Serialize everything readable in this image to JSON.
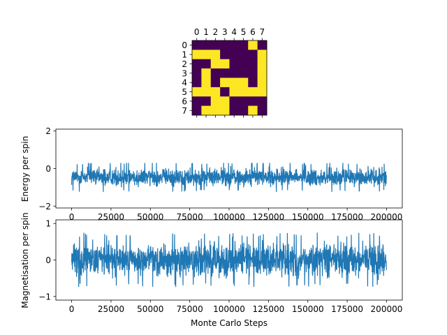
{
  "chart_data": [
    {
      "type": "heatmap",
      "x_ticks": [
        "0",
        "1",
        "2",
        "3",
        "4",
        "5",
        "6",
        "7"
      ],
      "y_ticks": [
        "0",
        "1",
        "2",
        "3",
        "4",
        "5",
        "6",
        "7"
      ],
      "grid": false,
      "colormap": {
        "low": "#440154",
        "high": "#fde725"
      },
      "values": [
        [
          0,
          0,
          0,
          0,
          0,
          0,
          1,
          0
        ],
        [
          1,
          1,
          1,
          0,
          0,
          0,
          0,
          1
        ],
        [
          0,
          0,
          1,
          1,
          0,
          0,
          0,
          1
        ],
        [
          0,
          1,
          0,
          0,
          0,
          0,
          0,
          1
        ],
        [
          0,
          1,
          0,
          1,
          1,
          1,
          0,
          1
        ],
        [
          1,
          1,
          1,
          0,
          1,
          1,
          1,
          1
        ],
        [
          0,
          0,
          1,
          1,
          0,
          0,
          0,
          0
        ],
        [
          0,
          1,
          1,
          1,
          0,
          0,
          1,
          0
        ]
      ]
    },
    {
      "type": "line",
      "ylabel": "Energy per spin",
      "xlabel": "",
      "xlim": [
        -10000,
        210000
      ],
      "ylim": [
        -2.1,
        2.1
      ],
      "x_ticks": [
        0,
        25000,
        50000,
        75000,
        100000,
        125000,
        150000,
        175000,
        200000
      ],
      "y_ticks": [
        -2,
        0,
        2
      ],
      "color": "#1f77b4",
      "grid": false,
      "series": [
        {
          "x_range": [
            0,
            200000
          ],
          "mean": -0.45,
          "min": -1.3,
          "max": 0.3
        }
      ]
    },
    {
      "type": "line",
      "ylabel": "Magnetisation per spin",
      "xlabel": "Monte Carlo Steps",
      "xlim": [
        -10000,
        210000
      ],
      "ylim": [
        -1.1,
        1.1
      ],
      "x_ticks": [
        0,
        25000,
        50000,
        75000,
        100000,
        125000,
        150000,
        175000,
        200000
      ],
      "y_ticks": [
        -1,
        0,
        1
      ],
      "color": "#1f77b4",
      "grid": false,
      "series": [
        {
          "x_range": [
            0,
            200000
          ],
          "mean": 0.0,
          "min": -0.75,
          "max": 0.75
        }
      ]
    }
  ]
}
